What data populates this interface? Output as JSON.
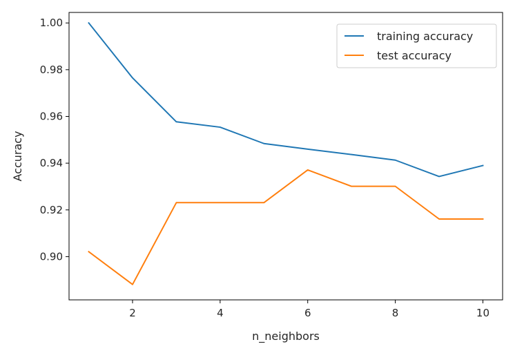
{
  "chart_data": {
    "type": "line",
    "xlabel": "n_neighbors",
    "ylabel": "Accuracy",
    "xlim": [
      0.55,
      10.45
    ],
    "ylim": [
      0.8815,
      1.0045
    ],
    "xticks": [
      2,
      4,
      6,
      8,
      10
    ],
    "yticks": [
      0.9,
      0.92,
      0.94,
      0.96,
      0.98,
      1.0
    ],
    "xtick_labels": [
      "2",
      "4",
      "6",
      "8",
      "10"
    ],
    "ytick_labels": [
      "0.90",
      "0.92",
      "0.94",
      "0.96",
      "0.98",
      "1.00"
    ],
    "grid": false,
    "legend_position": "top-right",
    "x": [
      1,
      2,
      3,
      4,
      5,
      6,
      7,
      8,
      9,
      10
    ],
    "series": [
      {
        "name": "training accuracy",
        "color": "#1f77b4",
        "values": [
          1.0,
          0.9765,
          0.9577,
          0.9554,
          0.9484,
          0.946,
          0.9437,
          0.9413,
          0.9343,
          0.939
        ]
      },
      {
        "name": "test accuracy",
        "color": "#ff7f0e",
        "values": [
          0.9021,
          0.8881,
          0.9231,
          0.9231,
          0.9231,
          0.9371,
          0.9301,
          0.9301,
          0.9161,
          0.9161
        ]
      }
    ]
  }
}
